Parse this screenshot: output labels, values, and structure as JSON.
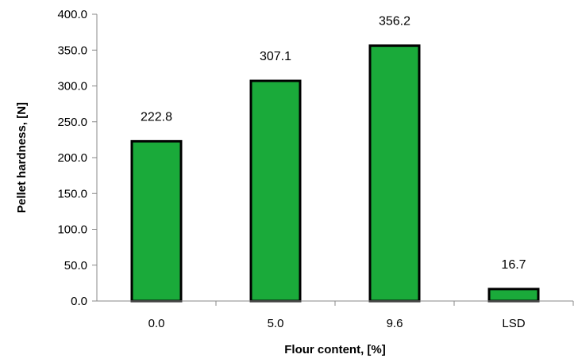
{
  "chart_data": {
    "type": "bar",
    "categories": [
      "0.0",
      "5.0",
      "9.6",
      "LSD"
    ],
    "values": [
      222.8,
      307.1,
      356.2,
      16.7
    ],
    "data_labels": [
      "222.8",
      "307.1",
      "356.2",
      "16.7"
    ],
    "xlabel": "Flour content, [%]",
    "ylabel": "Pellet hardness, [N]",
    "ylim": [
      0,
      400
    ],
    "yticks": [
      0,
      50,
      100,
      150,
      200,
      250,
      300,
      350,
      400
    ],
    "ytick_labels": [
      "0.0",
      "50.0",
      "100.0",
      "150.0",
      "200.0",
      "250.0",
      "300.0",
      "350.0",
      "400.0"
    ],
    "grid": false,
    "legend": "none",
    "bar_color": "#1aaa3a",
    "bar_edge_color": "#000000"
  }
}
